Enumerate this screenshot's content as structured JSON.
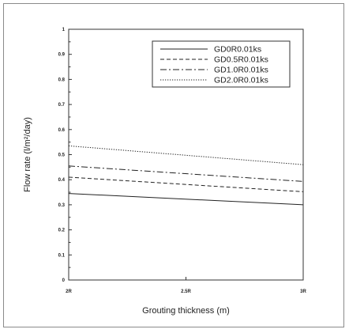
{
  "chart_data": {
    "type": "line",
    "title": "",
    "xlabel": "Grouting thickness (m)",
    "ylabel": "Flow rate (l/m²/day)",
    "x": [
      2.0,
      3.0
    ],
    "x_tick_values": [
      2.0,
      2.5,
      3.0
    ],
    "x_tick_labels": [
      "2R",
      "2.5R",
      "3R"
    ],
    "xlim": [
      2.0,
      3.0
    ],
    "ylim": [
      0,
      1
    ],
    "y_tick_values": [
      0,
      0.1,
      0.2,
      0.3,
      0.4,
      0.5,
      0.6,
      0.7,
      0.8,
      0.9,
      1
    ],
    "y_tick_labels": [
      "0",
      "0.1",
      "0.2",
      "0.3",
      "0.4",
      "0.5",
      "0.6",
      "0.7",
      "0.8",
      "0.9",
      "1"
    ],
    "grid": false,
    "legend_position": "top-right",
    "series": [
      {
        "name": "GD0R0.01ks",
        "style": "solid",
        "values": [
          0.345,
          0.3
        ]
      },
      {
        "name": "GD0.5R0.01ks",
        "style": "dashed",
        "values": [
          0.41,
          0.352
        ]
      },
      {
        "name": "GD1.0R0.01ks",
        "style": "dashdot",
        "values": [
          0.455,
          0.393
        ]
      },
      {
        "name": "GD2.0R0.01ks",
        "style": "dotted",
        "values": [
          0.535,
          0.46
        ]
      }
    ]
  }
}
